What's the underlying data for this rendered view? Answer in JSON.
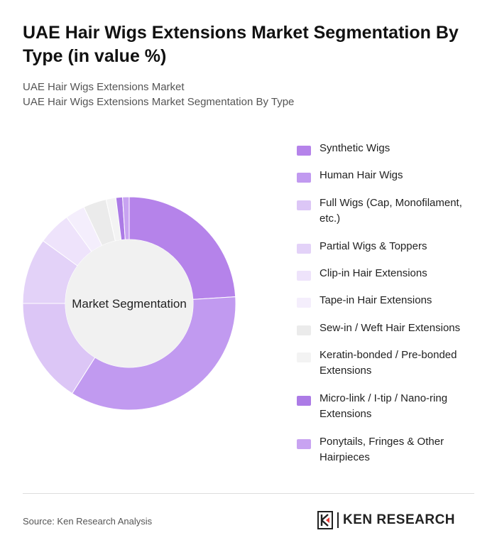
{
  "header": {
    "title": "UAE Hair Wigs Extensions Market Segmentation By Type (in value %)",
    "subtitle_line1": "UAE Hair Wigs Extensions Market",
    "subtitle_line2": "UAE Hair Wigs Extensions Market Segmentation By Type"
  },
  "chart_data": {
    "type": "pie",
    "variant": "donut",
    "center_label": "Market Segmentation",
    "categories": [
      "Synthetic Wigs",
      "Human Hair Wigs",
      "Full Wigs (Cap, Monofilament, etc.)",
      "Partial Wigs & Toppers",
      "Clip-in Hair Extensions",
      "Tape-in Hair Extensions",
      "Sew-in / Weft Hair Extensions",
      "Keratin-bonded / Pre-bonded Extensions",
      "Micro-link / I-tip / Nano-ring Extensions",
      "Ponytails, Fringes & Other Hairpieces"
    ],
    "values": [
      24,
      35,
      16,
      10,
      5,
      3,
      3.5,
      1.5,
      1,
      1
    ],
    "colors": [
      "#b583ea",
      "#c19af0",
      "#dcc6f6",
      "#e3d2f8",
      "#eee3fb",
      "#f4eefc",
      "#ebebeb",
      "#f3f3f3",
      "#ac7be6",
      "#c8a3f1"
    ],
    "legend_position": "right",
    "start_angle": "top, clockwise"
  },
  "footer": {
    "source": "Source: Ken Research Analysis",
    "brand": "KEN RESEARCH"
  }
}
